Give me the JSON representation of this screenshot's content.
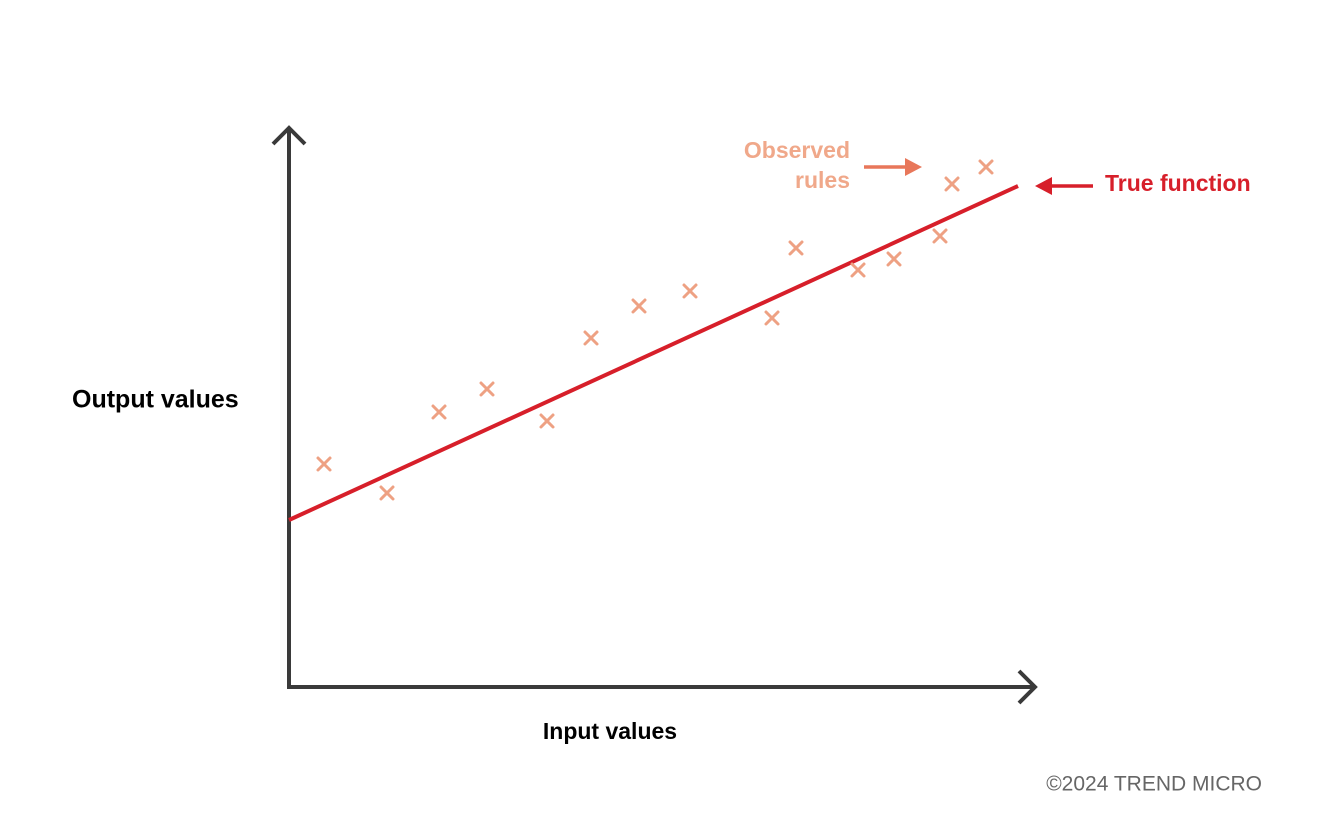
{
  "labels": {
    "y_axis": "Output values",
    "x_axis": "Input values",
    "observed": [
      "Observed",
      "rules"
    ],
    "true_function": "True function"
  },
  "footer": "©2024 TREND MICRO"
}
